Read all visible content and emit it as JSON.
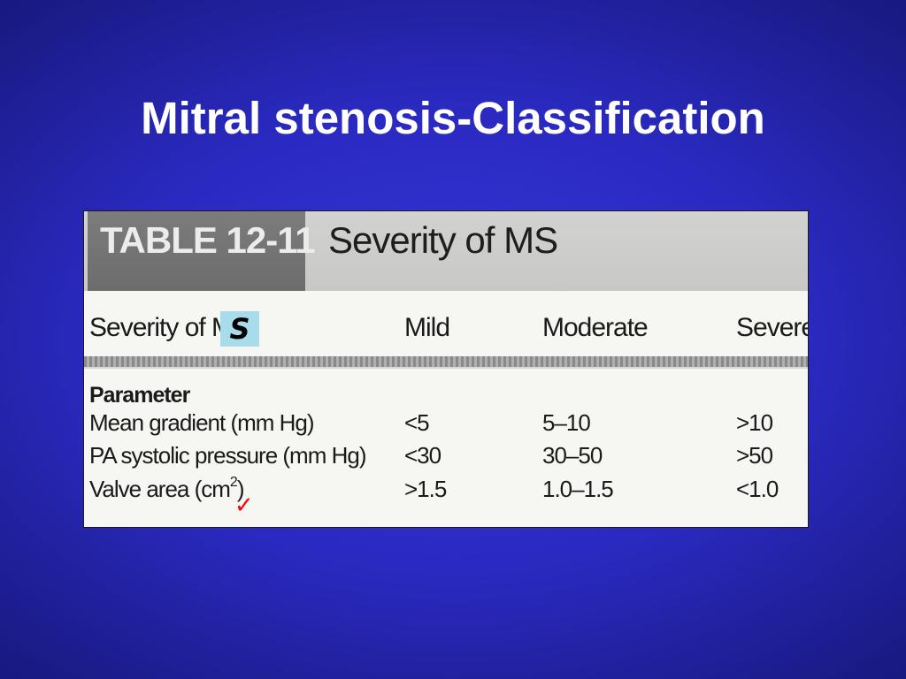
{
  "slide": {
    "title": "Mitral stenosis-Classification"
  },
  "table": {
    "label": "TABLE 12-11",
    "caption": "Severity of MS",
    "header": {
      "first_col_text": "Severity of M",
      "annotation_text": "S",
      "mild": "Mild",
      "moderate": "Moderate",
      "severe": "Severe"
    },
    "section_label": "Parameter",
    "rows": [
      {
        "parameter": "Mean gradient (mm Hg)",
        "mild": "<5",
        "moderate": "5–10",
        "severe": ">10"
      },
      {
        "parameter": "PA systolic pressure (mm Hg)",
        "mild": "<30",
        "moderate": "30–50",
        "severe": ">50"
      },
      {
        "parameter_main": "Valve area (cm",
        "parameter_sup": "2",
        "parameter_end": ")",
        "mild": ">1.5",
        "moderate": "1.0–1.5",
        "severe": "<1.0"
      }
    ],
    "check_mark": "✓"
  },
  "colors": {
    "background": "#2a2ac2",
    "title_text": "#ffffff",
    "annotation_highlight": "#a8dcea",
    "check_mark": "#ff0000"
  }
}
